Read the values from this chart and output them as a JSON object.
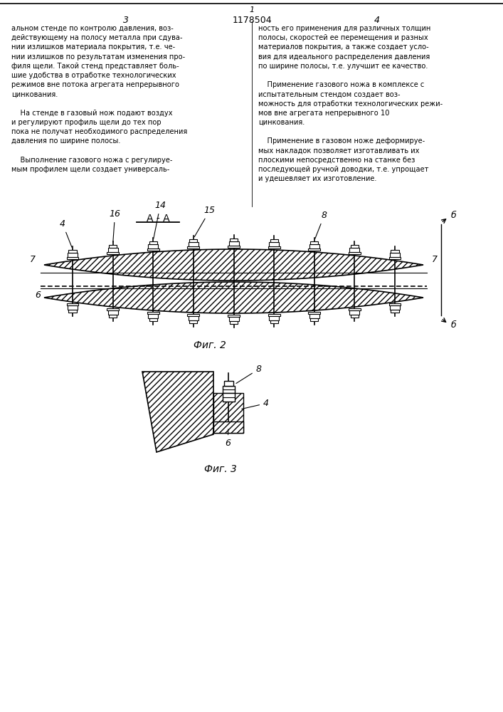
{
  "bg_color": "#ffffff",
  "patent_number": "1178504",
  "page_num_center": "1",
  "page_num_left": "3",
  "page_num_right": "4",
  "left_texts": [
    "альном стенде по контролю давления, воз-",
    "действующему на полосу металла при сдува-",
    "нии излишков материала покрытия, т.е. че-",
    "нии излишков по результатам изменения про-",
    "филя щели. Такой стенд представляет боль-",
    "шие удобства в отработке технологических",
    "режимов вне потока агрегата непрерывного",
    "цинкования.",
    "",
    "    На стенде в газовый нож подают воздух",
    "и регулируют профиль щели до тех пор",
    "пока не получат необходимого распределения",
    "давления по ширине полосы.",
    "",
    "    Выполнение газового ножа с регулируе-",
    "мым профилем щели создает универсаль-"
  ],
  "right_texts": [
    "ность его применения для различных толщин",
    "полосы, скоростей ее перемещения и разных",
    "материалов покрытия, а также создает усло-",
    "вия для идеального распределения давления",
    "по ширине полосы, т.е. улучшит ее качество.",
    "",
    "    Применение газового ножа в комплексе с",
    "испытательным стендом создает воз-",
    "можность для отработки технологических режи-",
    "мов вне агрегата непрерывного 10",
    "цинкования.",
    "",
    "    Применение в газовом ноже деформируе-",
    "мых накладок позволяет изготавливать их",
    "плоскими непосредственно на станке без",
    "последующей ручной доводки, т.е. упрощает",
    "и удешевляет их изготовление."
  ],
  "fig2_caption": "Фиг. 2",
  "fig3_caption": "Фиг. 3",
  "section_label": "A - A",
  "bb_label": "б",
  "label_4": "4",
  "label_6": "6",
  "label_7": "7",
  "label_8": "8",
  "label_14": "14",
  "label_15": "15",
  "label_16": "16"
}
